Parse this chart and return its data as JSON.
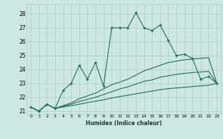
{
  "title": "",
  "xlabel": "Humidex (Indice chaleur)",
  "bg_color": "#cce8e0",
  "grid_color": "#aacccc",
  "line_color": "#1a6b5a",
  "xlim": [
    -0.5,
    23.5
  ],
  "ylim": [
    20.8,
    28.7
  ],
  "yticks": [
    21,
    22,
    23,
    24,
    25,
    26,
    27,
    28
  ],
  "xticks": [
    0,
    1,
    2,
    3,
    4,
    5,
    6,
    7,
    8,
    9,
    10,
    11,
    12,
    13,
    14,
    15,
    16,
    17,
    18,
    19,
    20,
    21,
    22,
    23
  ],
  "series": [
    [
      21.3,
      21.0,
      21.5,
      21.2,
      22.5,
      23.0,
      24.3,
      23.3,
      24.5,
      22.8,
      27.0,
      27.0,
      27.0,
      28.1,
      27.0,
      26.8,
      27.2,
      26.1,
      25.0,
      25.1,
      24.8,
      23.3,
      23.5,
      23.0
    ],
    [
      21.3,
      21.0,
      21.5,
      21.2,
      21.4,
      21.6,
      21.9,
      22.1,
      22.3,
      22.6,
      22.9,
      23.1,
      23.3,
      23.6,
      23.9,
      24.1,
      24.3,
      24.5,
      24.6,
      24.7,
      24.75,
      24.8,
      24.85,
      23.0
    ],
    [
      21.3,
      21.0,
      21.5,
      21.2,
      21.35,
      21.5,
      21.7,
      21.85,
      22.0,
      22.2,
      22.4,
      22.6,
      22.75,
      22.95,
      23.15,
      23.25,
      23.45,
      23.55,
      23.65,
      23.72,
      23.78,
      23.82,
      23.87,
      23.0
    ],
    [
      21.3,
      21.0,
      21.5,
      21.2,
      21.3,
      21.4,
      21.5,
      21.62,
      21.72,
      21.82,
      21.95,
      22.05,
      22.15,
      22.25,
      22.35,
      22.45,
      22.55,
      22.62,
      22.67,
      22.72,
      22.77,
      22.82,
      22.87,
      23.0
    ]
  ]
}
